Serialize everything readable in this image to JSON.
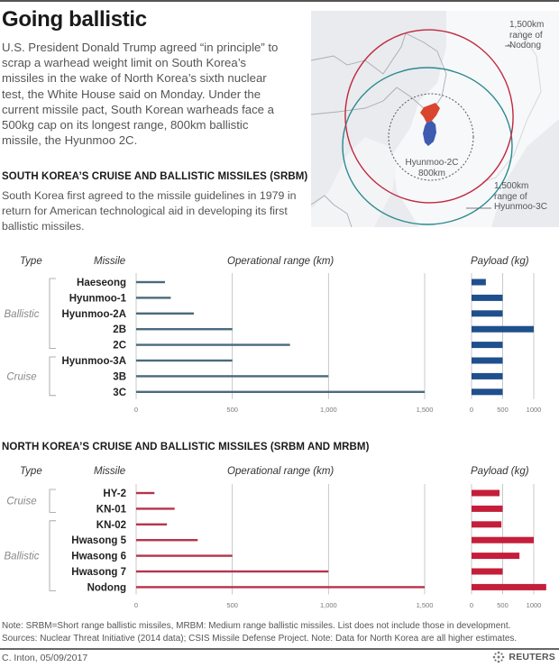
{
  "header": {
    "title": "Going ballistic",
    "intro": "U.S. President Donald Trump agreed “in principle” to scrap a warhead weight limit on South Korea’s missiles in the wake of North Korea’s sixth nuclear test, the White House said on Monday. Under the current missile pact, South Korean warheads face a 500kg cap on its longest range, 800km ballistic missile, the Hyunmoo 2C."
  },
  "map": {
    "labels": {
      "nodong": [
        "1,500km",
        "range of",
        "Nodong"
      ],
      "hyunmoo3c": [
        "1,500km",
        "range of",
        "Hyunmoo-3C"
      ],
      "hyunmoo2c": [
        "Hyunmoo-2C",
        "800km"
      ]
    },
    "colors": {
      "nodong_ring": "#c0273f",
      "hyunmoo3c_ring": "#2a8a8f",
      "north_korea": "#d9452f",
      "south_korea": "#3d5bb0"
    }
  },
  "south_section": {
    "title": "SOUTH KOREA’S CRUISE AND BALLISTIC MISSILES (SRBM)",
    "description": "South Korea first agreed to the missile guidelines in 1979 in return for American technological aid in developing its first ballistic missiles."
  },
  "north_section": {
    "title": "NORTH KOREA’S CRUISE AND BALLISTIC MISSILES (SRBM AND MRBM)"
  },
  "chart_data": [
    {
      "type": "bar",
      "orientation": "horizontal",
      "title": "South Korea's cruise and ballistic missiles (SRBM)",
      "column_headers": {
        "type": "Type",
        "missile": "Missile",
        "range": "Operational range (km)",
        "payload": "Payload (kg)"
      },
      "categories": [
        "Haeseong",
        "Hyunmoo-1",
        "Hyunmoo-2A",
        "2B",
        "2C",
        "Hyunmoo-3A",
        "3B",
        "3C"
      ],
      "groups": [
        {
          "label": "Ballistic",
          "from": 0,
          "to": 4
        },
        {
          "label": "Cruise",
          "from": 5,
          "to": 7
        }
      ],
      "series": [
        {
          "name": "Operational range (km)",
          "values": [
            150,
            180,
            300,
            500,
            800,
            500,
            1000,
            1500
          ],
          "xlim": [
            0,
            1500
          ],
          "ticks": [
            0,
            500,
            1000,
            1500
          ],
          "tick_labels": [
            "0",
            "500",
            "1,000",
            "1,500"
          ],
          "grid": true,
          "color": "#4a6a7e"
        },
        {
          "name": "Payload (kg)",
          "values": [
            230,
            500,
            500,
            1000,
            500,
            500,
            500,
            500
          ],
          "xlim": [
            0,
            1000
          ],
          "ticks": [
            0,
            500,
            1000
          ],
          "tick_labels": [
            "0",
            "500",
            "1000"
          ],
          "grid": true,
          "color": "#1f4f8c"
        }
      ]
    },
    {
      "type": "bar",
      "orientation": "horizontal",
      "title": "North Korea's cruise and ballistic missiles (SRBM and MRBM)",
      "column_headers": {
        "type": "Type",
        "missile": "Missile",
        "range": "Operational range (km)",
        "payload": "Payload (kg)"
      },
      "categories": [
        "HY-2",
        "KN-01",
        "KN-02",
        "Hwasong 5",
        "Hwasong 6",
        "Hwasong 7",
        "Nodong"
      ],
      "groups": [
        {
          "label": "Cruise",
          "from": 0,
          "to": 1
        },
        {
          "label": "Ballistic",
          "from": 2,
          "to": 6
        }
      ],
      "series": [
        {
          "name": "Operational range (km)",
          "values": [
            95,
            200,
            160,
            320,
            500,
            1000,
            1500
          ],
          "xlim": [
            0,
            1500
          ],
          "ticks": [
            0,
            500,
            1000,
            1500
          ],
          "tick_labels": [
            "0",
            "500",
            "1,000",
            "1,500"
          ],
          "grid": true,
          "color": "#b5344e"
        },
        {
          "name": "Payload (kg)",
          "values": [
            450,
            500,
            480,
            1000,
            770,
            500,
            1200
          ],
          "xlim": [
            0,
            1000
          ],
          "ticks": [
            0,
            500,
            1000
          ],
          "tick_labels": [
            "0",
            "500",
            "1000"
          ],
          "grid": true,
          "color": "#c41e3a"
        }
      ]
    }
  ],
  "footer": {
    "note": "Note: SRBM=Short range ballistic missiles, MRBM: Medium range ballistic missiles. List does not include those in development.",
    "sources": "Sources: Nuclear Threat Initiative (2014 data); CSIS Missile Defense Project. Note: Data for North Korea are all higher estimates.",
    "byline": "C. Inton, 05/09/2017",
    "logo": "REUTERS"
  }
}
